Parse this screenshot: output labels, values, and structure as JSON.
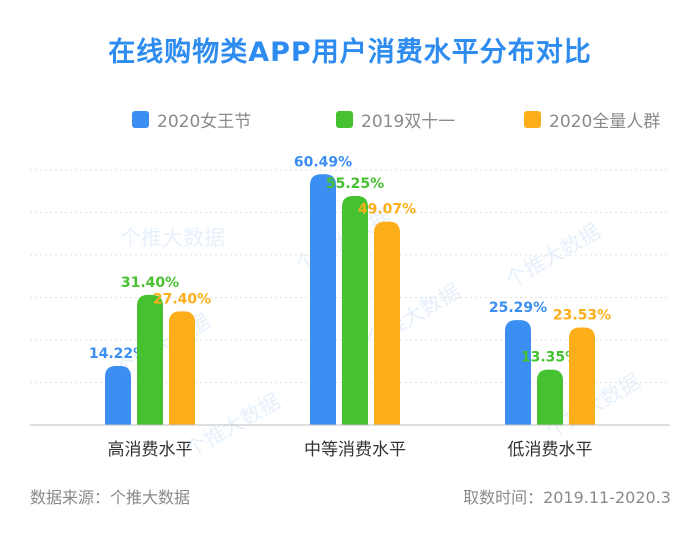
{
  "chart_data": {
    "type": "bar",
    "title": "在线购物类APP用户消费水平分布对比",
    "categories": [
      "高消费水平",
      "中等消费水平",
      "低消费水平"
    ],
    "series": [
      {
        "name": "2020女王节",
        "color": "#3b8ff3",
        "values": [
          14.22,
          60.49,
          25.29
        ]
      },
      {
        "name": "2019双十一",
        "color": "#46c12f",
        "values": [
          31.4,
          55.25,
          13.35
        ]
      },
      {
        "name": "2020全量人群",
        "color": "#fdae1b",
        "values": [
          27.4,
          49.07,
          23.53
        ]
      }
    ],
    "value_suffix": "%",
    "ylim": [
      0,
      62
    ],
    "grid": true,
    "legend_position": "top",
    "xlabel": "",
    "ylabel": ""
  },
  "footer": {
    "source": "数据来源：个推大数据",
    "period": "取数时间：2019.11-2020.3"
  },
  "watermark_text": "个推大数据"
}
